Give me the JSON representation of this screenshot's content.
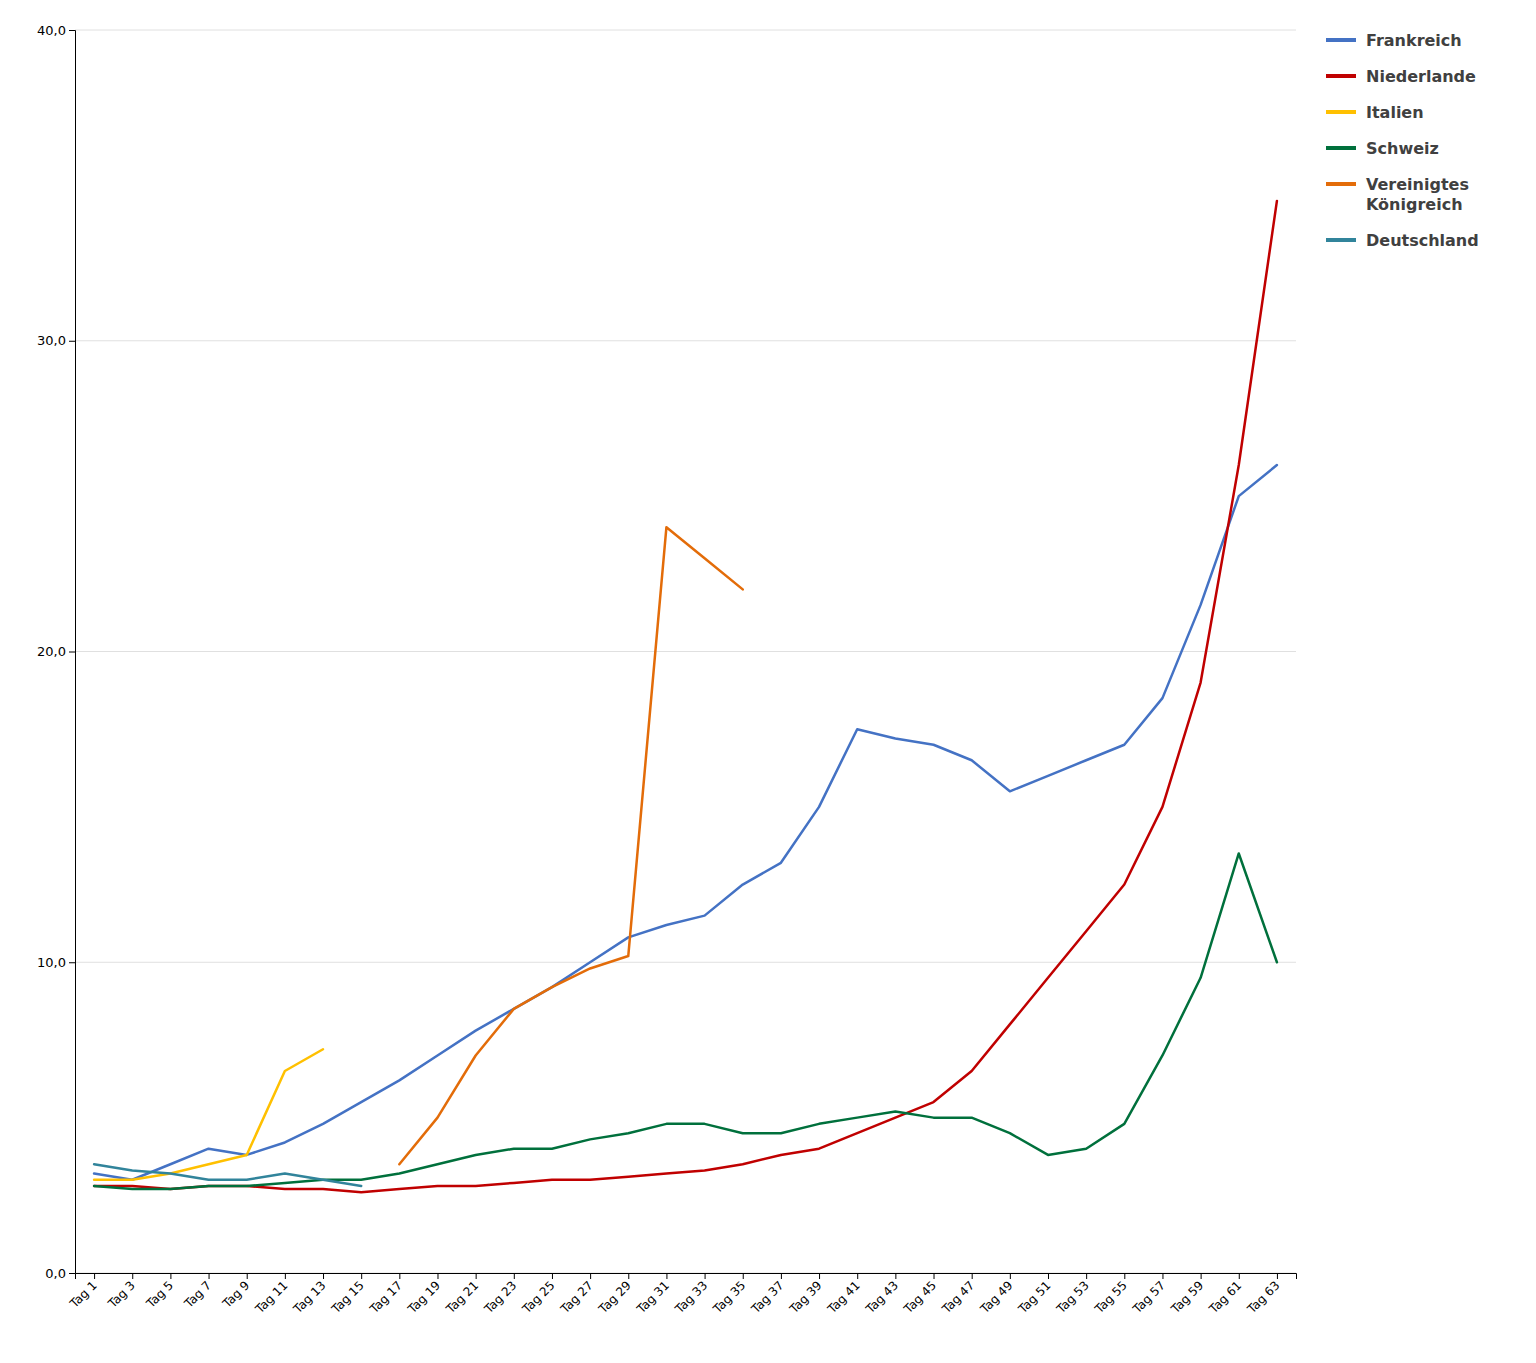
{
  "chart_data": {
    "type": "line",
    "categories": [
      "Tag 1",
      "Tag 3",
      "Tag 5",
      "Tag 7",
      "Tag 9",
      "Tag 11",
      "Tag 13",
      "Tag 15",
      "Tag 17",
      "Tag 19",
      "Tag 21",
      "Tag 23",
      "Tag 25",
      "Tag 27",
      "Tag 29",
      "Tag 31",
      "Tag 33",
      "Tag 35",
      "Tag 37",
      "Tag 39",
      "Tag 41",
      "Tag 43",
      "Tag 45",
      "Tag 47",
      "Tag 49",
      "Tag 51",
      "Tag 53",
      "Tag 55",
      "Tag 57",
      "Tag 59",
      "Tag 61",
      "Tag 63"
    ],
    "series": [
      {
        "name": "Frankreich",
        "color": "#4472C4",
        "values": [
          3.2,
          3.0,
          3.5,
          4.0,
          3.8,
          4.2,
          4.8,
          5.5,
          6.2,
          7.0,
          7.8,
          8.5,
          9.2,
          10.0,
          10.8,
          11.2,
          11.5,
          12.5,
          13.2,
          15.0,
          17.5,
          17.2,
          17.0,
          16.5,
          15.5,
          16.0,
          16.5,
          17.0,
          18.5,
          21.5,
          25.0,
          26.0
        ]
      },
      {
        "name": "Niederlande",
        "color": "#C00000",
        "values": [
          2.8,
          2.8,
          2.7,
          2.8,
          2.8,
          2.7,
          2.7,
          2.6,
          2.7,
          2.8,
          2.8,
          2.9,
          3.0,
          3.0,
          3.1,
          3.2,
          3.3,
          3.5,
          3.8,
          4.0,
          4.5,
          5.0,
          5.5,
          6.5,
          8.0,
          9.5,
          11.0,
          12.5,
          15.0,
          19.0,
          26.0,
          34.5
        ]
      },
      {
        "name": "Italien",
        "color": "#FFC000",
        "values": [
          3.0,
          3.0,
          3.2,
          3.5,
          3.8,
          6.5,
          7.2,
          null,
          null,
          null,
          null,
          null,
          null,
          null,
          null,
          null,
          null,
          null,
          null,
          null,
          null,
          null,
          null,
          null,
          null,
          null,
          null,
          null,
          null,
          null,
          null,
          null
        ]
      },
      {
        "name": "Schweiz",
        "color": "#00703C",
        "values": [
          2.8,
          2.7,
          2.7,
          2.8,
          2.8,
          2.9,
          3.0,
          3.0,
          3.2,
          3.5,
          3.8,
          4.0,
          4.0,
          4.3,
          4.5,
          4.8,
          4.8,
          4.5,
          4.5,
          4.8,
          5.0,
          5.2,
          5.0,
          5.0,
          4.5,
          3.8,
          4.0,
          4.8,
          7.0,
          9.5,
          13.5,
          10.0
        ]
      },
      {
        "name": "Vereinigtes\nKönigreich",
        "color": "#E36C09",
        "values": [
          null,
          null,
          null,
          null,
          null,
          null,
          null,
          null,
          3.5,
          5.0,
          7.0,
          8.5,
          9.2,
          9.8,
          10.2,
          24.0,
          23.0,
          22.0,
          null,
          null,
          null,
          null,
          null,
          null,
          null,
          null,
          null,
          null,
          null,
          null,
          null,
          null
        ]
      },
      {
        "name": "Deutschland",
        "color": "#31849B",
        "values": [
          3.5,
          3.3,
          3.2,
          3.0,
          3.0,
          3.2,
          3.0,
          2.8,
          null,
          null,
          null,
          null,
          null,
          null,
          null,
          null,
          null,
          null,
          null,
          null,
          null,
          null,
          null,
          null,
          null,
          null,
          null,
          null,
          null,
          null,
          null,
          null
        ]
      }
    ],
    "ylim": [
      0,
      40
    ],
    "yticks": [
      {
        "value": 0,
        "label": "0,0"
      },
      {
        "value": 10,
        "label": "10,0"
      },
      {
        "value": 20,
        "label": "20,0"
      },
      {
        "value": 30,
        "label": "30,0"
      },
      {
        "value": 40,
        "label": "40,0"
      }
    ],
    "grid": true,
    "legend": "right"
  }
}
